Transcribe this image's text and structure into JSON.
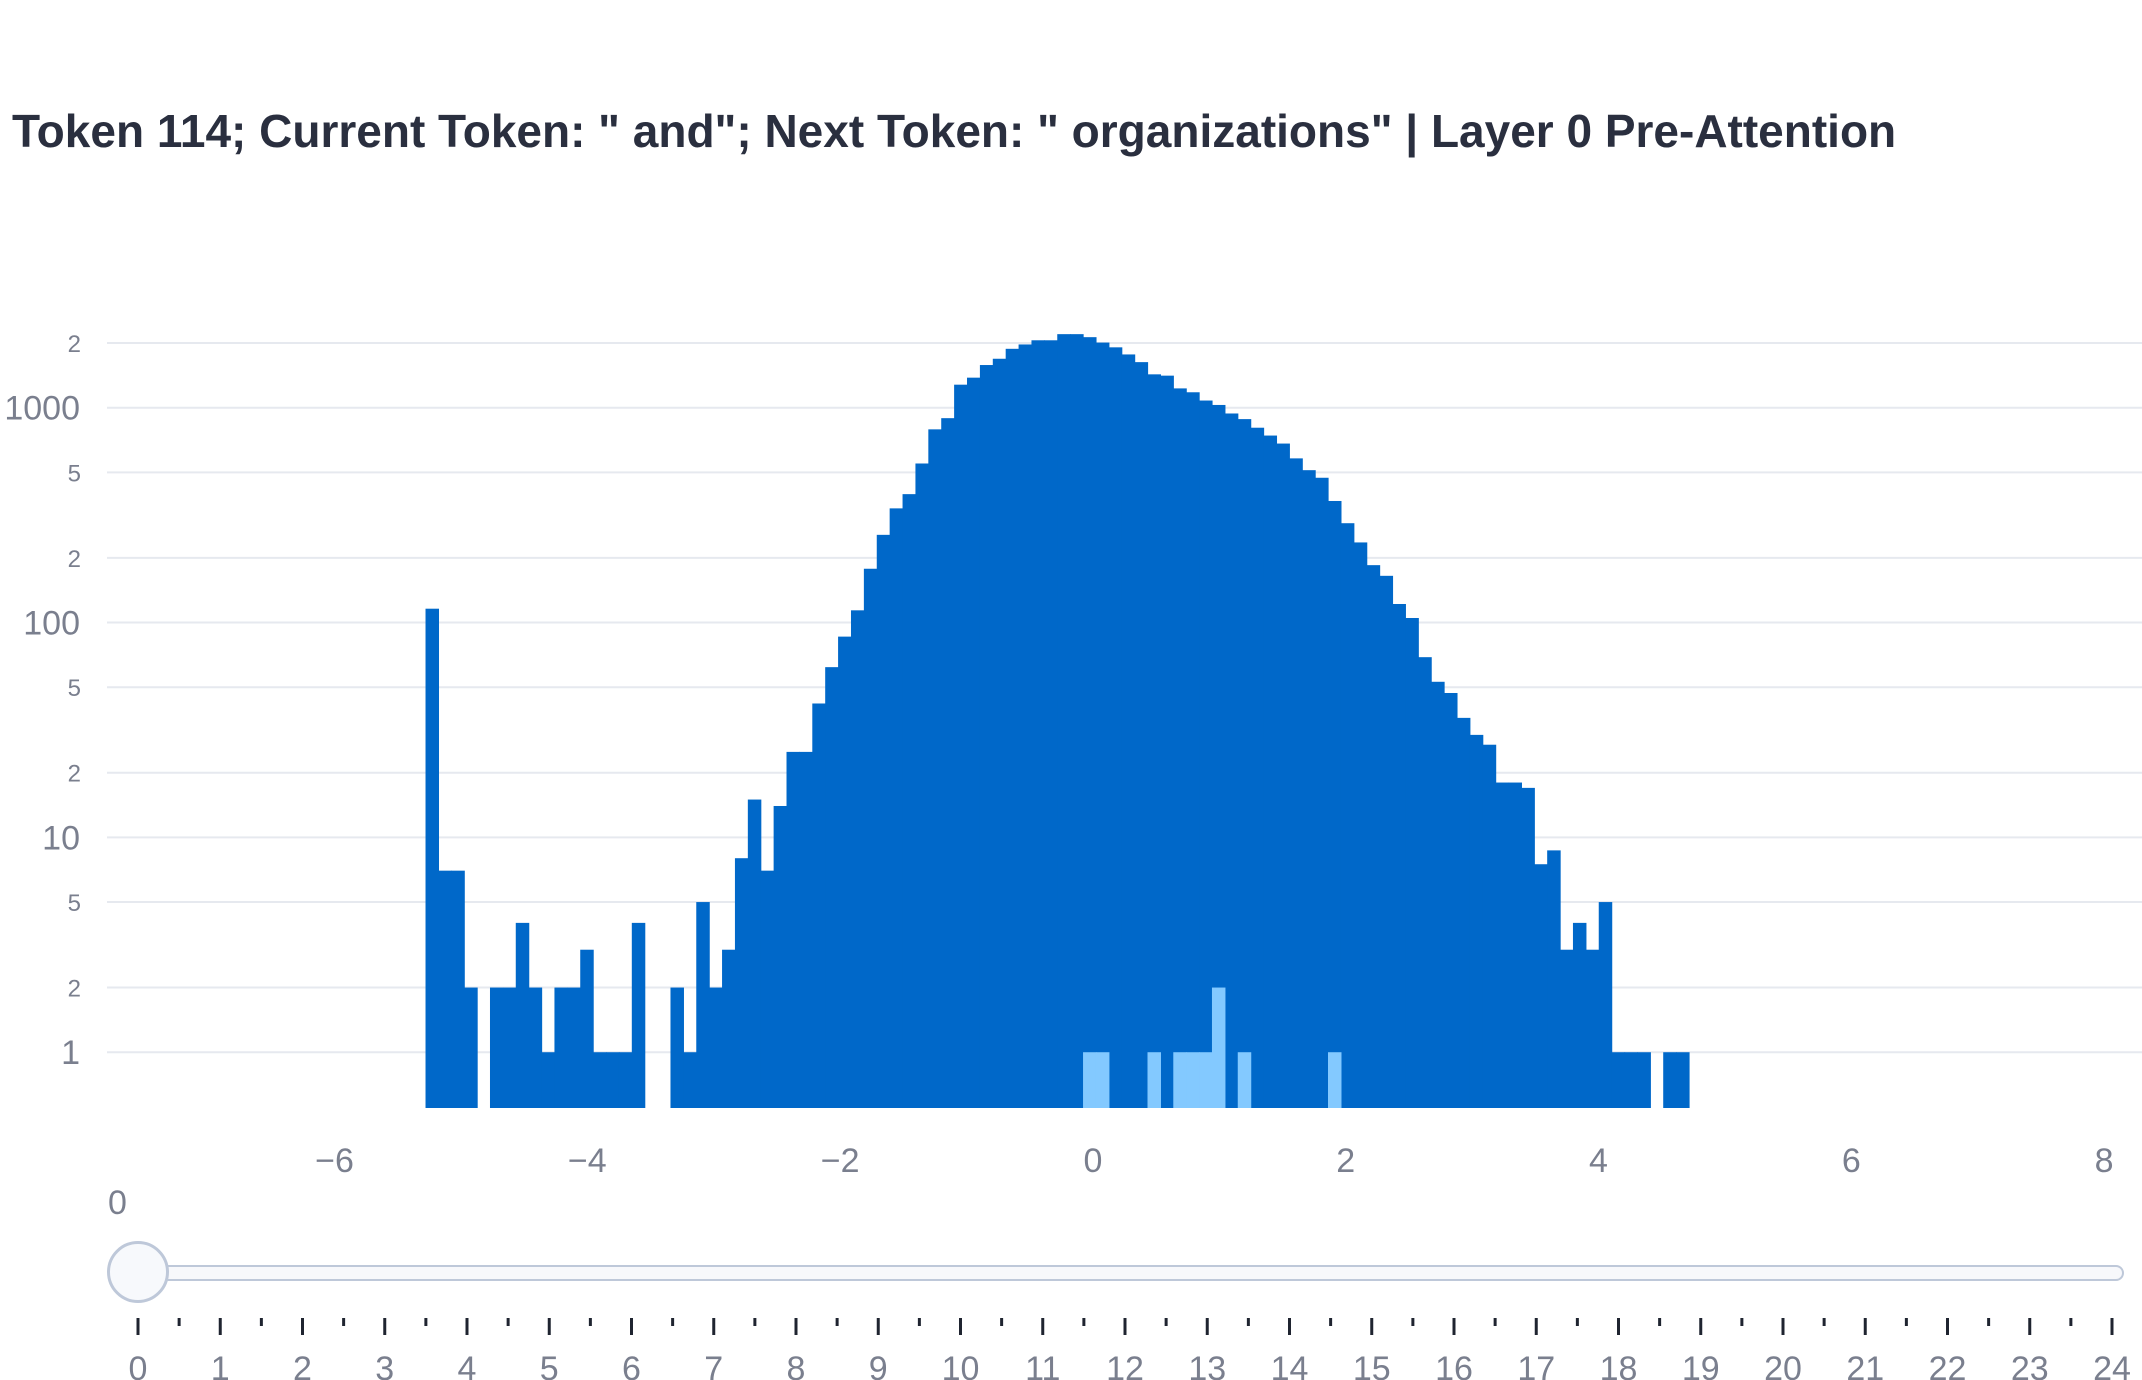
{
  "chart_data": {
    "type": "bar",
    "title": "Token 114; Current Token: \" and\"; Next Token: \" organizations\" | Layer 0 Pre-Attention",
    "xlabel": "",
    "ylabel": "",
    "y_scale": "log",
    "xlim": [
      -7.8,
      8.3
    ],
    "ylim": [
      0.55,
      2300
    ],
    "x_tick_labels": [
      "−6",
      "−4",
      "−2",
      "0",
      "2",
      "4",
      "6",
      "8"
    ],
    "x_tick_values": [
      -6,
      -4,
      -2,
      0,
      2,
      4,
      6,
      8
    ],
    "y_major_ticks": [
      {
        "value": 1,
        "label": "1"
      },
      {
        "value": 10,
        "label": "10"
      },
      {
        "value": 100,
        "label": "100"
      },
      {
        "value": 1000,
        "label": "1000"
      }
    ],
    "y_minor_ticks": [
      {
        "value": 2,
        "label": "2"
      },
      {
        "value": 5,
        "label": "5"
      },
      {
        "value": 20,
        "label": "2"
      },
      {
        "value": 50,
        "label": "5"
      },
      {
        "value": 200,
        "label": "2"
      },
      {
        "value": 500,
        "label": "5"
      },
      {
        "value": 2000,
        "label": "2"
      }
    ],
    "grid": true,
    "bin_start": -5.28,
    "bin_width": 0.102,
    "series": [
      {
        "color": "#0068c9",
        "values": [
          116,
          7,
          7,
          2,
          0,
          2,
          2,
          4,
          2,
          1,
          2,
          2,
          3,
          1,
          1,
          1,
          4,
          0,
          0,
          2,
          1,
          5,
          2,
          3,
          8,
          15,
          7,
          14,
          25,
          25,
          42,
          62,
          86,
          114,
          178,
          256,
          340,
          396,
          550,
          793,
          894,
          1280,
          1380,
          1580,
          1690,
          1880,
          1970,
          2060,
          2060,
          2200,
          2200,
          2130,
          2010,
          1910,
          1770,
          1630,
          1430,
          1410,
          1230,
          1180,
          1080,
          1030,
          940,
          885,
          807,
          742,
          681,
          581,
          512,
          472,
          368,
          290,
          236,
          185,
          165,
          122,
          105,
          69,
          53,
          47,
          36,
          30,
          27,
          18,
          18,
          17,
          7.5,
          8.7,
          3,
          4,
          3,
          5,
          1,
          1,
          1,
          0,
          1,
          1
        ]
      },
      {
        "color": "#83c9ff",
        "values": [
          0,
          0,
          0,
          0,
          0,
          0,
          0,
          0,
          0,
          0,
          0,
          0,
          0,
          0,
          0,
          0,
          0,
          0,
          0,
          0,
          0,
          0,
          0,
          0,
          0,
          0,
          0,
          0,
          0,
          0,
          0,
          0,
          0,
          0,
          0,
          0,
          0,
          0,
          0,
          0,
          0,
          0,
          0,
          0,
          0,
          0,
          0,
          0,
          0,
          0,
          0,
          1,
          1,
          0,
          0,
          0,
          1,
          0,
          1,
          1,
          1,
          2,
          0,
          1,
          0,
          0,
          0,
          0,
          0,
          0,
          1,
          0,
          0,
          0,
          0,
          0,
          0,
          0,
          0,
          0,
          0,
          0,
          0,
          0,
          0,
          0,
          0,
          0,
          0,
          0,
          0,
          0,
          0,
          0,
          0,
          0
        ]
      }
    ]
  },
  "slider": {
    "current_label": "0",
    "value": 0,
    "min": 0,
    "max": 24,
    "tick_labels": [
      "0",
      "1",
      "2",
      "3",
      "4",
      "5",
      "6",
      "7",
      "8",
      "9",
      "10",
      "11",
      "12",
      "13",
      "14",
      "15",
      "16",
      "17",
      "18",
      "19",
      "20",
      "21",
      "22",
      "23",
      "24"
    ]
  }
}
